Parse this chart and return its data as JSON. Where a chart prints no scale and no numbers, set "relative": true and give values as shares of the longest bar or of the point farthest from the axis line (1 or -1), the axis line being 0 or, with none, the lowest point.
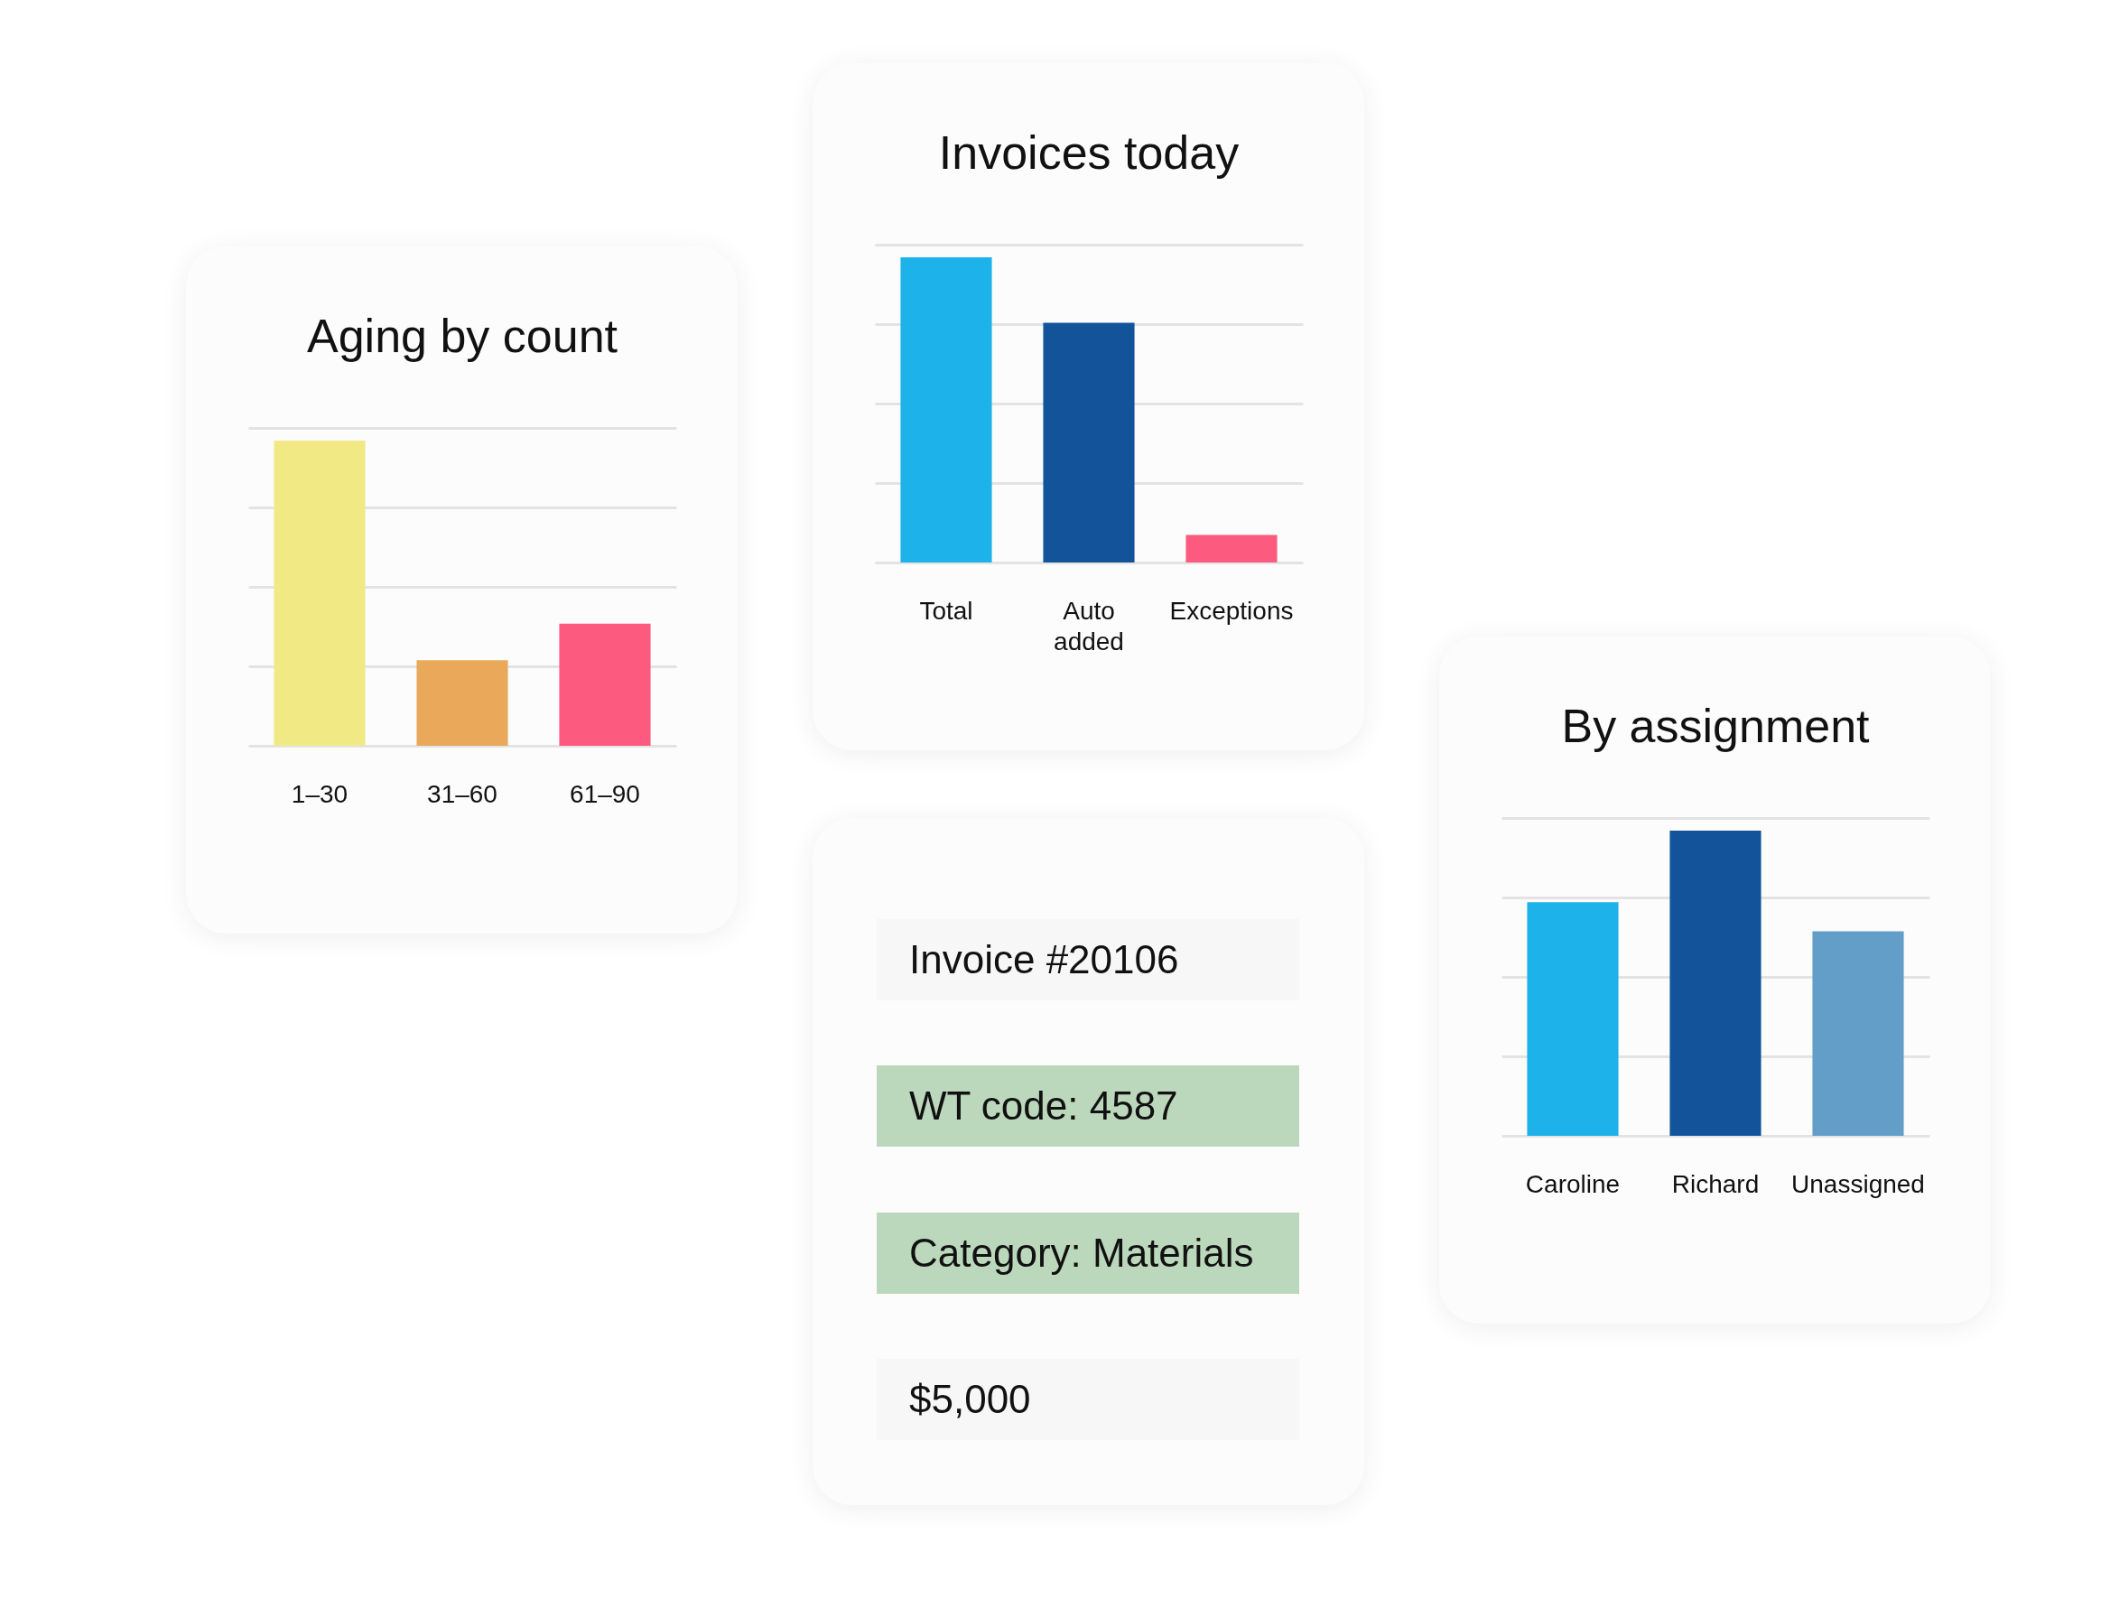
{
  "chart_data": [
    {
      "type": "bar",
      "title": "Aging by count",
      "relative": true,
      "grid": true,
      "categories": [
        "1–30",
        "31–60",
        "61–90"
      ],
      "values": [
        1,
        0.28,
        0.4
      ],
      "colors": [
        "#f0e984",
        "#eaa85b",
        "#fd5a80"
      ]
    },
    {
      "type": "bar",
      "title": "Invoices today",
      "relative": true,
      "grid": true,
      "categories": [
        "Total",
        "Auto added",
        "Exceptions"
      ],
      "values": [
        1,
        0.785,
        0.09
      ],
      "colors": [
        "#1db2ea",
        "#12539a",
        "#fd5a80"
      ]
    },
    {
      "type": "other",
      "annotations": [
        "Invoice #20106",
        "WT code: 4587",
        "Category: Materials",
        "$5,000"
      ],
      "colors": [
        "#f7f7f7",
        "#bcd8bc",
        "#bcd8bc",
        "#f7f7f7"
      ]
    },
    {
      "type": "bar",
      "title": "By assignment",
      "relative": true,
      "grid": true,
      "categories": [
        "Caroline",
        "Richard",
        "Unassigned"
      ],
      "values": [
        0.765,
        1,
        0.67
      ],
      "colors": [
        "#1db2ea",
        "#12539a",
        "#639ec8"
      ]
    }
  ]
}
